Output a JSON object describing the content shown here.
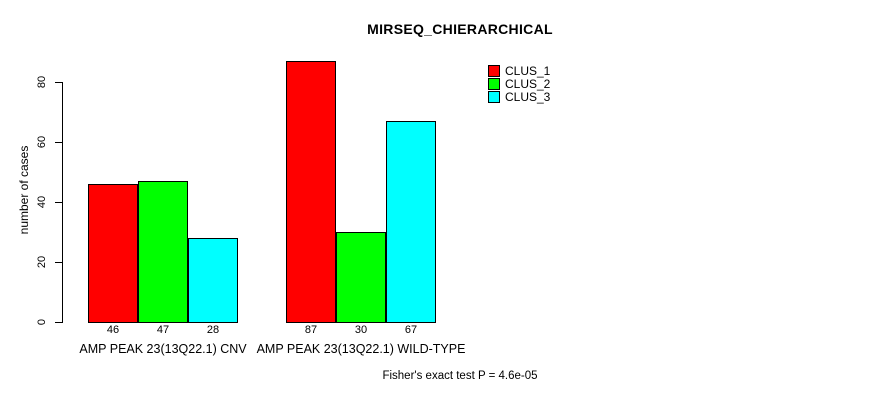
{
  "chart_data": {
    "type": "bar",
    "title": "MIRSEQ_CHIERARCHICAL",
    "ylabel": "number of cases",
    "xlabel": "",
    "ylim": [
      0,
      80
    ],
    "yticks": [
      0,
      20,
      40,
      60,
      80
    ],
    "categories": [
      "AMP PEAK 23(13Q22.1) CNV",
      "AMP PEAK 23(13Q22.1) WILD-TYPE"
    ],
    "series": [
      {
        "name": "CLUS_1",
        "color": "#ff0000",
        "values": [
          46,
          87
        ]
      },
      {
        "name": "CLUS_2",
        "color": "#00ff00",
        "values": [
          47,
          30
        ]
      },
      {
        "name": "CLUS_3",
        "color": "#00ffff",
        "values": [
          28,
          67
        ]
      }
    ],
    "bar_value_labels_shown": true,
    "annotation": "Fisher's exact test P = 4.6e-05",
    "legend_position": "top-right",
    "grid": false,
    "axis_color": "#000000",
    "background_color": "#ffffff"
  }
}
